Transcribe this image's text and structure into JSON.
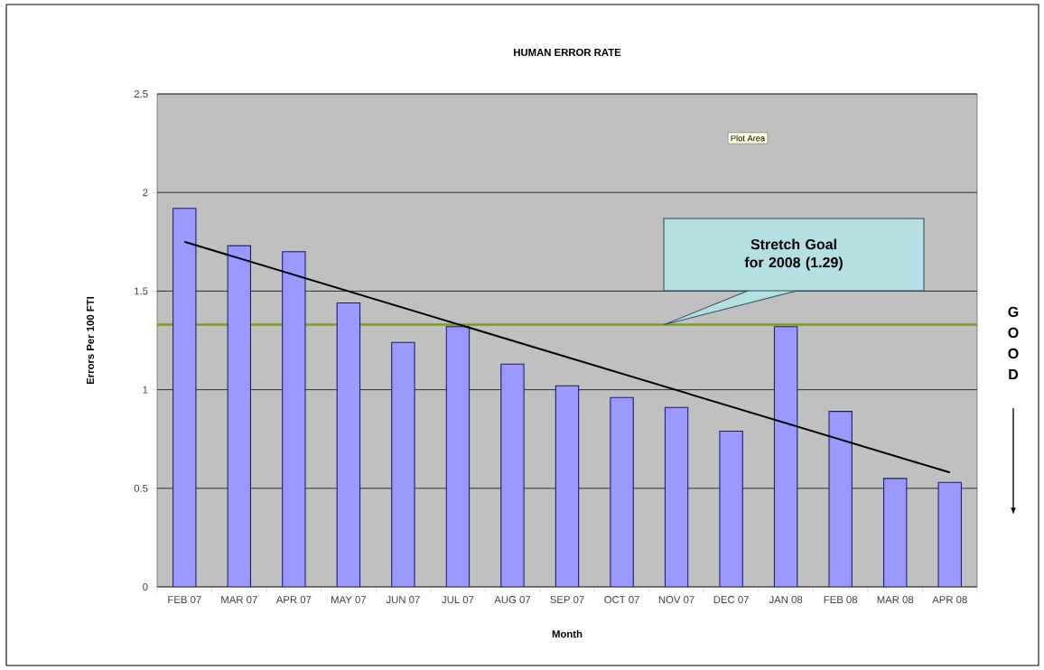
{
  "chart_data": {
    "type": "bar",
    "title": "HUMAN ERROR RATE",
    "xlabel": "Month",
    "ylabel": "Errors Per 100 FTI",
    "categories": [
      "FEB 07",
      "MAR 07",
      "APR 07",
      "MAY 07",
      "JUN 07",
      "JUL 07",
      "AUG 07",
      "SEP 07",
      "OCT 07",
      "NOV 07",
      "DEC 07",
      "JAN 08",
      "FEB 08",
      "MAR 08",
      "APR 08"
    ],
    "series": [
      {
        "type": "bar",
        "color": "#9999ff",
        "values": [
          1.92,
          1.73,
          1.7,
          1.44,
          1.24,
          1.32,
          1.13,
          1.02,
          0.96,
          0.91,
          0.79,
          1.32,
          0.89,
          0.55,
          0.53
        ]
      },
      {
        "type": "line",
        "color": "#000000",
        "values": [
          1.75,
          null,
          null,
          null,
          null,
          null,
          null,
          null,
          null,
          null,
          null,
          null,
          null,
          null,
          0.58
        ]
      }
    ],
    "ylim": [
      0,
      2.5
    ],
    "yticks": [
      0,
      0.5,
      1,
      1.5,
      2,
      2.5
    ],
    "grid": "y",
    "ref_lines": [
      {
        "axis": "y",
        "value": 1.33,
        "label": "Stretch Goal for 2008 (1.29)",
        "color": "#7a9a2a"
      }
    ],
    "annotations": [
      "Plot Area",
      "GOOD"
    ]
  }
}
